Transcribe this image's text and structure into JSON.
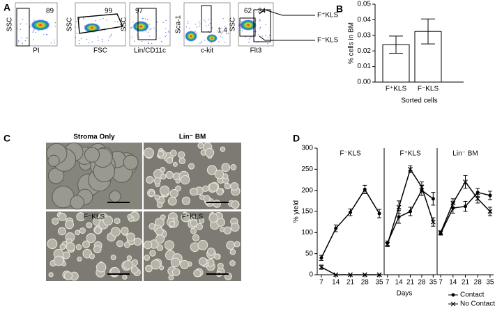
{
  "panel_labels": [
    "A",
    "B",
    "C",
    "D"
  ],
  "flow_plots": [
    {
      "y_label": "SSC",
      "x_label": "PI",
      "gates": [
        "89"
      ]
    },
    {
      "y_label": "SSC",
      "x_label": "FSC",
      "gates": [
        "99"
      ]
    },
    {
      "y_label": "SSC",
      "x_label": "Lin/CD11c",
      "gates": [
        "97"
      ]
    },
    {
      "y_label": "Sca-1",
      "x_label": "c-kit",
      "gates": [
        "1.4"
      ]
    },
    {
      "y_label": "SSC",
      "x_label": "Flt3",
      "gates": [
        "62",
        "34"
      ]
    }
  ],
  "flow_callouts": [
    "F⁺KLS",
    "F⁻KLS"
  ],
  "images": [
    {
      "label": "Stroma Only"
    },
    {
      "label": "Lin⁻ BM"
    },
    {
      "label": "F⁻KLS"
    },
    {
      "label": "F⁺KLS"
    }
  ],
  "chart_data": [
    {
      "type": "bar",
      "categories": [
        "F⁺KLS",
        "F⁻KLS"
      ],
      "values": [
        0.024,
        0.0325
      ],
      "errors": [
        0.0055,
        0.008
      ],
      "color": "#ffffff",
      "ylabel": "% cells in BM",
      "xlabel": "Sorted cells",
      "ylim": [
        0,
        0.05
      ],
      "yticks": [
        {
          "value": 0,
          "label": "0.00"
        },
        {
          "value": 0.01,
          "label": "0.01"
        },
        {
          "value": 0.02,
          "label": "0.02"
        },
        {
          "value": 0.03,
          "label": "0.03"
        },
        {
          "value": 0.04,
          "label": "0.04"
        },
        {
          "value": 0.05,
          "label": "0.05"
        }
      ]
    },
    {
      "type": "line",
      "title": "F⁻KLS",
      "ylabel": "% yield",
      "xlabel": "Days",
      "x": [
        7,
        14,
        21,
        28,
        35
      ],
      "xlim": [
        5,
        37
      ],
      "xticks": [
        7,
        14,
        21,
        28,
        35
      ],
      "ylim": [
        0,
        300
      ],
      "yticks": [
        0,
        50,
        100,
        150,
        200,
        250,
        300
      ],
      "series": [
        {
          "name": "Contact",
          "color": "#000000",
          "marker": "circle",
          "values": [
            40,
            110,
            148,
            202,
            145
          ],
          "errors": [
            6,
            8,
            8,
            10,
            10
          ]
        },
        {
          "name": "No Contact",
          "color": "#000000",
          "marker": "x",
          "values": [
            18,
            0,
            0,
            0,
            0
          ],
          "errors": [
            5,
            0,
            0,
            0,
            0
          ]
        }
      ]
    },
    {
      "type": "line",
      "title": "F⁺KLS",
      "x": [
        7,
        14,
        21,
        28,
        35
      ],
      "xlim": [
        5,
        37
      ],
      "xticks": [
        7,
        14,
        21,
        28,
        35
      ],
      "ylim": [
        0,
        300
      ],
      "series": [
        {
          "color": "#000000",
          "marker": "circle",
          "values": [
            75,
            137,
            150,
            200,
            180
          ],
          "errors": [
            5,
            15,
            10,
            12,
            15
          ]
        },
        {
          "color": "#000000",
          "marker": "x",
          "values": [
            72,
            160,
            250,
            208,
            125
          ],
          "errors": [
            5,
            15,
            8,
            12,
            10
          ]
        }
      ]
    },
    {
      "type": "line",
      "title": "Lin⁻ BM",
      "x": [
        7,
        14,
        21,
        28,
        35
      ],
      "xlim": [
        5,
        37
      ],
      "xticks": [
        7,
        14,
        21,
        28,
        35
      ],
      "ylim": [
        0,
        300
      ],
      "series": [
        {
          "color": "#000000",
          "marker": "circle",
          "values": [
            98,
            158,
            162,
            195,
            188
          ],
          "errors": [
            4,
            12,
            12,
            10,
            10
          ]
        },
        {
          "color": "#000000",
          "marker": "x",
          "values": [
            100,
            170,
            220,
            180,
            150
          ],
          "errors": [
            4,
            10,
            15,
            10,
            10
          ]
        }
      ]
    }
  ]
}
